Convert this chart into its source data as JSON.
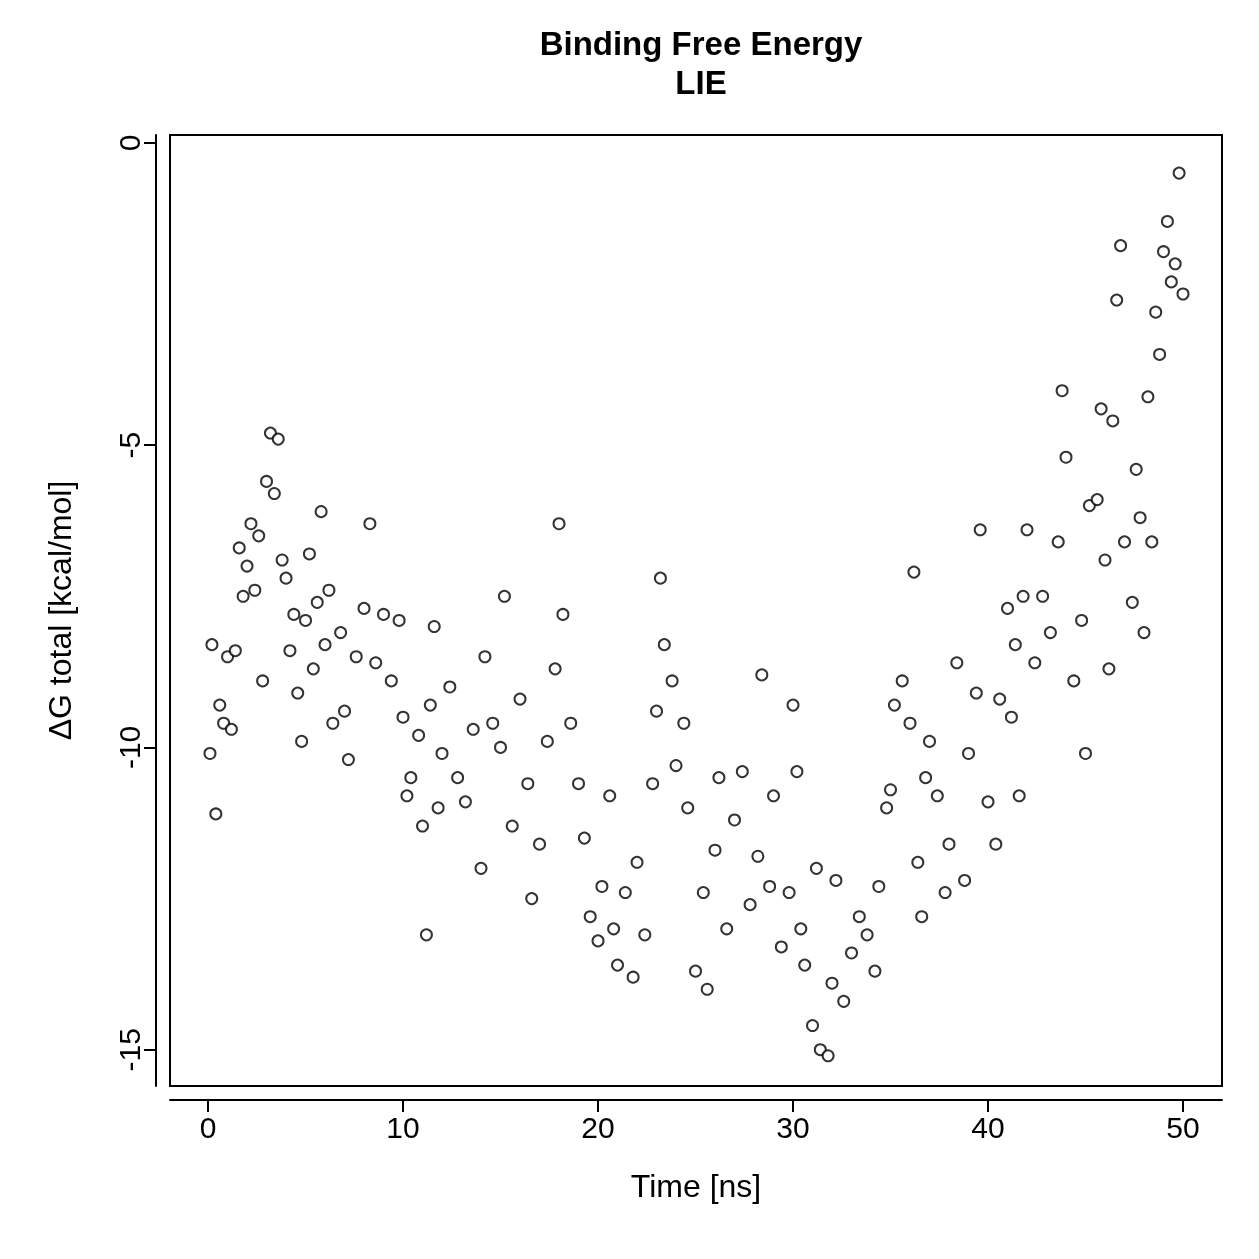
{
  "chart_data": {
    "type": "scatter",
    "title": "Binding Free Energy",
    "subtitle": "LIE",
    "xlabel": "Time [ns]",
    "ylabel": "ΔG total [kcal/mol]",
    "xlim": [
      -1.95,
      52
    ],
    "xticks": [
      0,
      10,
      20,
      30,
      40,
      50
    ],
    "ylim": [
      -15.6,
      0.13
    ],
    "yticks": [
      -15,
      -10,
      -5,
      0
    ],
    "grid": false,
    "marker": "circle",
    "series": [
      {
        "color": "#000000",
        "x": [
          0.1,
          0.2,
          0.4,
          0.6,
          0.8,
          1.0,
          1.2,
          1.4,
          1.6,
          1.8,
          2.0,
          2.2,
          2.4,
          2.6,
          2.8,
          3.0,
          3.2,
          3.4,
          3.6,
          3.8,
          4.0,
          4.2,
          4.4,
          4.6,
          4.8,
          5.0,
          5.2,
          5.4,
          5.6,
          5.8,
          6.0,
          6.2,
          6.4,
          6.8,
          7.0,
          7.2,
          7.6,
          8.0,
          8.3,
          8.6,
          9.0,
          9.4,
          9.8,
          10.0,
          10.2,
          10.4,
          10.8,
          11.0,
          11.2,
          11.4,
          11.6,
          11.8,
          12.0,
          12.4,
          12.8,
          13.2,
          13.6,
          14.0,
          14.2,
          14.6,
          15.0,
          15.2,
          15.6,
          16.0,
          16.4,
          16.6,
          17.0,
          17.4,
          17.8,
          18.0,
          18.2,
          18.6,
          19.0,
          19.3,
          19.6,
          20.0,
          20.2,
          20.6,
          20.8,
          21.0,
          21.4,
          21.8,
          22.0,
          22.4,
          22.8,
          23.0,
          23.2,
          23.4,
          23.8,
          24.0,
          24.4,
          24.6,
          25.0,
          25.4,
          25.6,
          26.0,
          26.2,
          26.6,
          27.0,
          27.4,
          27.8,
          28.2,
          28.4,
          28.8,
          29.0,
          29.4,
          29.8,
          30.0,
          30.2,
          30.4,
          30.6,
          31.0,
          31.2,
          31.4,
          31.8,
          32.0,
          32.2,
          32.6,
          33.0,
          33.4,
          33.8,
          34.2,
          34.4,
          34.8,
          35.0,
          35.2,
          35.6,
          36.0,
          36.2,
          36.4,
          36.6,
          36.8,
          37.0,
          37.4,
          37.8,
          38.0,
          38.4,
          38.8,
          39.0,
          39.4,
          39.6,
          40.0,
          40.4,
          40.6,
          41.0,
          41.2,
          41.4,
          41.6,
          41.8,
          42.0,
          42.4,
          42.8,
          43.2,
          43.6,
          43.8,
          44.0,
          44.4,
          44.8,
          45.0,
          45.2,
          45.6,
          45.8,
          46.0,
          46.2,
          46.4,
          46.6,
          46.8,
          47.0,
          47.4,
          47.6,
          47.8,
          48.0,
          48.2,
          48.4,
          48.6,
          48.8,
          49.0,
          49.2,
          49.4,
          49.6,
          49.8,
          50.0
        ],
        "values": [
          -10.1,
          -8.3,
          -11.1,
          -9.3,
          -9.6,
          -8.5,
          -9.7,
          -8.4,
          -6.7,
          -7.5,
          -7.0,
          -6.3,
          -7.4,
          -6.5,
          -8.9,
          -5.6,
          -4.8,
          -5.8,
          -4.9,
          -6.9,
          -7.2,
          -8.4,
          -7.8,
          -9.1,
          -9.9,
          -7.9,
          -6.8,
          -8.7,
          -7.6,
          -6.1,
          -8.3,
          -7.4,
          -9.6,
          -8.1,
          -9.4,
          -10.2,
          -8.5,
          -7.7,
          -6.3,
          -8.6,
          -7.8,
          -8.9,
          -7.9,
          -9.5,
          -10.8,
          -10.5,
          -9.8,
          -11.3,
          -13.1,
          -9.3,
          -8.0,
          -11.0,
          -10.1,
          -9.0,
          -10.5,
          -10.9,
          -9.7,
          -12.0,
          -8.5,
          -9.6,
          -10.0,
          -7.5,
          -11.3,
          -9.2,
          -10.6,
          -12.5,
          -11.6,
          -9.9,
          -8.7,
          -6.3,
          -7.8,
          -9.6,
          -10.6,
          -11.5,
          -12.8,
          -13.2,
          -12.3,
          -10.8,
          -13.0,
          -13.6,
          -12.4,
          -13.8,
          -11.9,
          -13.1,
          -10.6,
          -9.4,
          -7.2,
          -8.3,
          -8.9,
          -10.3,
          -9.6,
          -11.0,
          -13.7,
          -12.4,
          -14.0,
          -11.7,
          -10.5,
          -13.0,
          -11.2,
          -10.4,
          -12.6,
          -11.8,
          -8.8,
          -12.3,
          -10.8,
          -13.3,
          -12.4,
          -9.3,
          -10.4,
          -13.0,
          -13.6,
          -14.6,
          -12.0,
          -15.0,
          -15.1,
          -13.9,
          -12.2,
          -14.2,
          -13.4,
          -12.8,
          -13.1,
          -13.7,
          -12.3,
          -11.0,
          -10.7,
          -9.3,
          -8.9,
          -9.6,
          -7.1,
          -11.9,
          -12.8,
          -10.5,
          -9.9,
          -10.8,
          -12.4,
          -11.6,
          -8.6,
          -12.2,
          -10.1,
          -9.1,
          -6.4,
          -10.9,
          -11.6,
          -9.2,
          -7.7,
          -9.5,
          -8.3,
          -10.8,
          -7.5,
          -6.4,
          -8.6,
          -7.5,
          -8.1,
          -6.6,
          -4.1,
          -5.2,
          -8.9,
          -7.9,
          -10.1,
          -6.0,
          -5.9,
          -4.4,
          -6.9,
          -8.7,
          -4.6,
          -2.6,
          -1.7,
          -6.6,
          -7.6,
          -5.4,
          -6.2,
          -8.1,
          -4.2,
          -6.6,
          -2.8,
          -3.5,
          -1.8,
          -1.3,
          -2.3,
          -2.0,
          -0.5,
          -2.5
        ]
      }
    ]
  }
}
